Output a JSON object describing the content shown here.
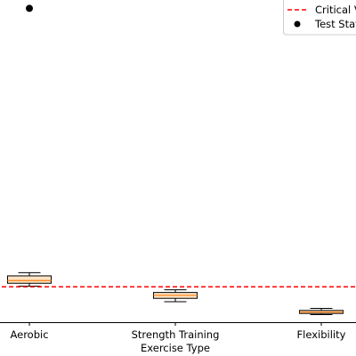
{
  "chart_data": {
    "type": "box",
    "xlabel": "Exercise Type",
    "ylabel": "",
    "title": "",
    "categories": [
      "Aerobic",
      "Strength Training",
      "Flexibility"
    ],
    "boxes": [
      {
        "category": "Aerobic",
        "whisker_low": 1.25,
        "q1": 1.42,
        "median": 1.58,
        "q3": 1.86,
        "whisker_high": 2.05
      },
      {
        "category": "Strength Training",
        "whisker_low": 0.32,
        "q1": 0.52,
        "median": 0.7,
        "q3": 0.87,
        "whisker_high": 1.03
      },
      {
        "category": "Flexibility",
        "whisker_low": -0.45,
        "q1": -0.38,
        "median": -0.3,
        "q3": -0.2,
        "whisker_high": -0.08
      }
    ],
    "critical_value": 1.21,
    "test_statistic": {
      "category": "Aerobic",
      "value": 17.8
    },
    "ylim": [
      -0.9,
      18.3
    ],
    "box_fill": "#ffe4c4",
    "median_color": "#ff7f0e",
    "critical_color": "#ff0000",
    "legend": {
      "placement": "top-right",
      "entries": [
        {
          "label": "Critical Value",
          "marker": "dashed-line",
          "color": "#ff0000"
        },
        {
          "label": "Test Statistic",
          "marker": "dot",
          "color": "#000000"
        }
      ]
    }
  }
}
